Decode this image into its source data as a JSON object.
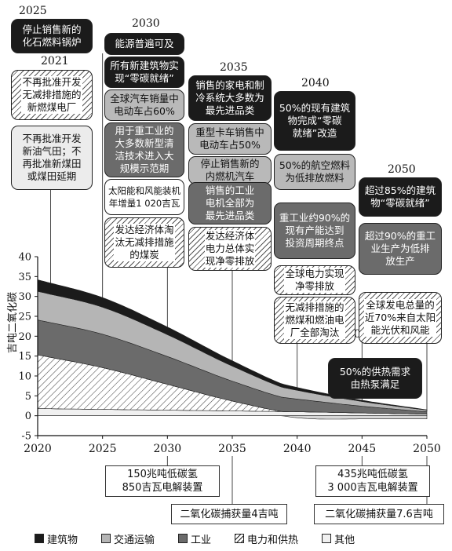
{
  "chart_data": {
    "type": "area",
    "ylabel": "吉吨二氧化碳",
    "xlim": [
      2020,
      2050
    ],
    "ylim": [
      -5,
      40
    ],
    "yticks": [
      -5,
      0,
      5,
      10,
      15,
      20,
      25,
      30,
      35,
      40
    ],
    "xticks": [
      2020,
      2025,
      2030,
      2035,
      2040,
      2045,
      2050
    ],
    "x": [
      2020,
      2025,
      2030,
      2035,
      2040,
      2045,
      2050
    ],
    "series": [
      {
        "name": "其他",
        "color": "#f0f0f0",
        "values": [
          1.8,
          1.6,
          1.4,
          1.2,
          1.0,
          0.7,
          0.4
        ]
      },
      {
        "name": "电力和供热",
        "color": "hatch",
        "values": [
          13.5,
          10.5,
          6.5,
          2.5,
          -0.5,
          -0.8,
          -0.8
        ]
      },
      {
        "name": "工业",
        "color": "#6b6b6b",
        "values": [
          8.8,
          8.4,
          7.0,
          5.0,
          3.2,
          1.7,
          0.6
        ]
      },
      {
        "name": "交通运输",
        "color": "#b5b5b5",
        "values": [
          7.2,
          6.8,
          5.5,
          3.8,
          2.2,
          1.2,
          0.4
        ]
      },
      {
        "name": "建筑物",
        "color": "#1b1b1b",
        "values": [
          2.9,
          2.4,
          1.9,
          1.3,
          0.7,
          0.3,
          0.1
        ]
      }
    ]
  },
  "years": {
    "y2021": "2021",
    "y2025": "2025",
    "y2030": "2030",
    "y2035": "2035",
    "y2040": "2040",
    "y2045": "2045",
    "y2050": "2050"
  },
  "boxes": {
    "b2025": "停止销售新的\n化石燃料锅炉",
    "b2021a": "不再批准开发\n无减排措施的\n新燃煤电厂",
    "b2021b": "不再批准开发\n新油气田；不\n再批准新煤田\n或煤田延期",
    "b2030_1": "能源普遍可及",
    "b2030_2": "所有新建筑物实\n现“零碳就绪”",
    "b2030_3": "全球汽车销量中\n电动车占60%",
    "b2030_4": "用于重工业的\n大多数新型清\n洁技术进入大\n规模示范期",
    "b2030_5": "太阳能和风能装机\n年增量1 020吉瓦",
    "b2030_6": "发达经济体淘\n汰无减排措施\n的煤炭",
    "b2035_1": "销售的家电和制\n冷系统大多数为\n最先进品类",
    "b2035_2": "重型卡车销售中\n电动车占50%",
    "b2035_3": "停止销售新的\n内燃机汽车",
    "b2035_4": "销售的工业\n电机全部为\n最先进品类",
    "b2035_5": "发达经济体\n电力总体实\n现净零排放",
    "b2040_1": "50%的现有建筑\n物完成“零碳\n就绪”改造",
    "b2040_2": "50%的航空燃料\n为低排放燃料",
    "b2040_3": "重工业约90%的\n现有产能达到\n投资周期终点",
    "b2040_4": "全球电力实现\n净零排放",
    "b2040_5": "无减排措施的\n燃煤和燃油电\n厂全部淘汰",
    "b2045": "50%的供热需求\n由热泵满足",
    "b2050_1": "超过85%的建筑\n物“零碳就绪”",
    "b2050_2": "超过90%的重工\n业生产为低排\n放生产",
    "b2050_3": "全球发电总量的\n近70%来自太阳\n能光伏和风能"
  },
  "bottom": {
    "h2030": "150兆吨低碳氢\n850吉瓦电解装置",
    "h2045": "435兆吨低碳氢\n3 000吉瓦电解装置",
    "c2030": "二氧化碳捕获量4吉吨",
    "c2050": "二氧化碳捕获量7.6吉吨"
  },
  "legend": [
    "建筑物",
    "交通运输",
    "工业",
    "电力和供热",
    "其他"
  ]
}
